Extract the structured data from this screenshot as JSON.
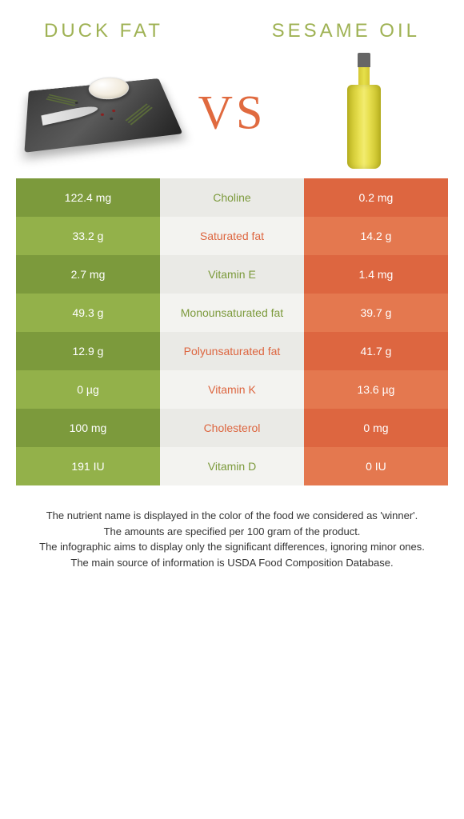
{
  "left_title": "Duck fat",
  "right_title": "Sesame oil",
  "vs": "VS",
  "colors": {
    "left_dark": "#7c9a3c",
    "left_light": "#93b14a",
    "mid_dark": "#eaeae6",
    "mid_light": "#f3f3f0",
    "right_dark": "#dd6640",
    "right_light": "#e4784f",
    "label_green": "#7c9a3c",
    "label_orange": "#dd6640"
  },
  "rows": [
    {
      "left": "122.4 mg",
      "label": "Choline",
      "right": "0.2 mg",
      "winner": "left"
    },
    {
      "left": "33.2 g",
      "label": "Saturated fat",
      "right": "14.2 g",
      "winner": "right"
    },
    {
      "left": "2.7 mg",
      "label": "Vitamin E",
      "right": "1.4 mg",
      "winner": "left"
    },
    {
      "left": "49.3 g",
      "label": "Monounsaturated fat",
      "right": "39.7 g",
      "winner": "left"
    },
    {
      "left": "12.9 g",
      "label": "Polyunsaturated fat",
      "right": "41.7 g",
      "winner": "right"
    },
    {
      "left": "0 µg",
      "label": "Vitamin K",
      "right": "13.6 µg",
      "winner": "right"
    },
    {
      "left": "100 mg",
      "label": "Cholesterol",
      "right": "0 mg",
      "winner": "right"
    },
    {
      "left": "191 IU",
      "label": "Vitamin D",
      "right": "0 IU",
      "winner": "left"
    }
  ],
  "footer": [
    "The nutrient name is displayed in the color of the food we considered as 'winner'.",
    "The amounts are specified per 100 gram of the product.",
    "The infographic aims to display only the significant differences, ignoring minor ones.",
    "The main source of information is USDA Food Composition Database."
  ]
}
